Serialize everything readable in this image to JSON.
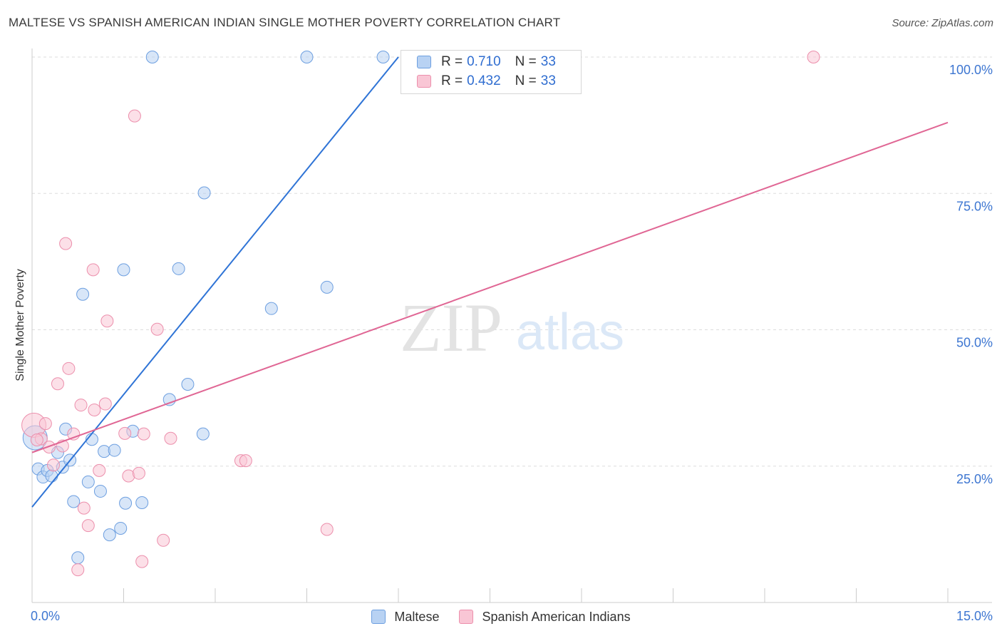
{
  "header": {
    "title": "MALTESE VS SPANISH AMERICAN INDIAN SINGLE MOTHER POVERTY CORRELATION CHART",
    "source": "Source: ZipAtlas.com"
  },
  "watermark": {
    "zip": "ZIP",
    "atlas": "atlas"
  },
  "legend_top": {
    "rows": [
      {
        "r_label": "R =",
        "r_value": "0.710",
        "n_label": "N =",
        "n_value": "33"
      },
      {
        "r_label": "R =",
        "r_value": "0.432",
        "n_label": "N =",
        "n_value": "33"
      }
    ]
  },
  "legend_bottom": {
    "items": [
      {
        "label": "Maltese"
      },
      {
        "label": "Spanish American Indians"
      }
    ]
  },
  "colors": {
    "maltese_fill": "#b8d2f3",
    "maltese_stroke": "#6d9fe0",
    "maltese_line": "#2f74d6",
    "spanish_fill": "#f9c6d5",
    "spanish_stroke": "#ec8fac",
    "spanish_line": "#e06694",
    "tick_label": "#3d76d1",
    "grid": "#dddddd"
  },
  "chart_data": {
    "type": "scatter",
    "title": "MALTESE VS SPANISH AMERICAN INDIAN SINGLE MOTHER POVERTY CORRELATION CHART",
    "xlabel": "",
    "ylabel": "Single Mother Poverty",
    "xlim": [
      0,
      15
    ],
    "ylim": [
      0,
      100
    ],
    "x_tick_labels": [
      {
        "value": 0,
        "label": "0.0%"
      },
      {
        "value": 15,
        "label": "15.0%"
      }
    ],
    "y_tick_labels": [
      {
        "value": 25,
        "label": "25.0%"
      },
      {
        "value": 50,
        "label": "50.0%"
      },
      {
        "value": 75,
        "label": "75.0%"
      },
      {
        "value": 100,
        "label": "100.0%"
      }
    ],
    "grid": true,
    "series": [
      {
        "name": "Maltese",
        "r": 0.71,
        "n": 33,
        "trend": {
          "x": [
            0,
            6.0
          ],
          "y": [
            17.5,
            100
          ]
        },
        "points": [
          {
            "x": 0.05,
            "y": 30.2,
            "big": true
          },
          {
            "x": 0.1,
            "y": 24.5
          },
          {
            "x": 0.18,
            "y": 23.0
          },
          {
            "x": 0.25,
            "y": 24.2
          },
          {
            "x": 0.32,
            "y": 23.2
          },
          {
            "x": 0.42,
            "y": 27.5
          },
          {
            "x": 0.5,
            "y": 24.8
          },
          {
            "x": 0.55,
            "y": 31.8
          },
          {
            "x": 0.62,
            "y": 26.1
          },
          {
            "x": 0.68,
            "y": 18.5
          },
          {
            "x": 0.75,
            "y": 8.2
          },
          {
            "x": 0.83,
            "y": 56.5
          },
          {
            "x": 0.92,
            "y": 22.1
          },
          {
            "x": 0.98,
            "y": 29.9
          },
          {
            "x": 1.12,
            "y": 20.4
          },
          {
            "x": 1.18,
            "y": 27.7
          },
          {
            "x": 1.27,
            "y": 12.4
          },
          {
            "x": 1.35,
            "y": 27.9
          },
          {
            "x": 1.45,
            "y": 13.6
          },
          {
            "x": 1.5,
            "y": 61.0
          },
          {
            "x": 1.53,
            "y": 18.2
          },
          {
            "x": 1.65,
            "y": 31.4
          },
          {
            "x": 1.8,
            "y": 18.3
          },
          {
            "x": 1.97,
            "y": 100
          },
          {
            "x": 2.25,
            "y": 37.2
          },
          {
            "x": 2.4,
            "y": 61.2
          },
          {
            "x": 2.55,
            "y": 40.0
          },
          {
            "x": 2.8,
            "y": 30.9
          },
          {
            "x": 2.82,
            "y": 75.1
          },
          {
            "x": 3.92,
            "y": 53.9
          },
          {
            "x": 4.5,
            "y": 100
          },
          {
            "x": 4.83,
            "y": 57.8
          },
          {
            "x": 5.75,
            "y": 100
          }
        ]
      },
      {
        "name": "Spanish American Indians",
        "r": 0.432,
        "n": 33,
        "trend": {
          "x": [
            0,
            15.0
          ],
          "y": [
            27.5,
            88.0
          ]
        },
        "points": [
          {
            "x": 0.03,
            "y": 32.5,
            "big": true
          },
          {
            "x": 0.15,
            "y": 30.0
          },
          {
            "x": 0.22,
            "y": 32.8
          },
          {
            "x": 0.28,
            "y": 28.5
          },
          {
            "x": 0.35,
            "y": 25.2
          },
          {
            "x": 0.42,
            "y": 40.1
          },
          {
            "x": 0.5,
            "y": 28.7
          },
          {
            "x": 0.55,
            "y": 65.8
          },
          {
            "x": 0.6,
            "y": 42.9
          },
          {
            "x": 0.68,
            "y": 30.9
          },
          {
            "x": 0.75,
            "y": 6.0
          },
          {
            "x": 0.8,
            "y": 36.2
          },
          {
            "x": 0.85,
            "y": 17.3
          },
          {
            "x": 0.92,
            "y": 14.1
          },
          {
            "x": 1.0,
            "y": 61.0
          },
          {
            "x": 1.02,
            "y": 35.3
          },
          {
            "x": 1.1,
            "y": 24.2
          },
          {
            "x": 1.2,
            "y": 36.4
          },
          {
            "x": 1.23,
            "y": 51.6
          },
          {
            "x": 1.52,
            "y": 31.0
          },
          {
            "x": 1.58,
            "y": 23.2
          },
          {
            "x": 1.68,
            "y": 89.2
          },
          {
            "x": 1.75,
            "y": 23.7
          },
          {
            "x": 1.8,
            "y": 7.5
          },
          {
            "x": 1.83,
            "y": 30.9
          },
          {
            "x": 2.05,
            "y": 50.1
          },
          {
            "x": 2.15,
            "y": 11.4
          },
          {
            "x": 2.27,
            "y": 30.1
          },
          {
            "x": 3.42,
            "y": 26.0
          },
          {
            "x": 3.5,
            "y": 26.0
          },
          {
            "x": 4.83,
            "y": 13.4
          },
          {
            "x": 12.8,
            "y": 100
          },
          {
            "x": 0.08,
            "y": 29.8
          }
        ]
      }
    ]
  }
}
